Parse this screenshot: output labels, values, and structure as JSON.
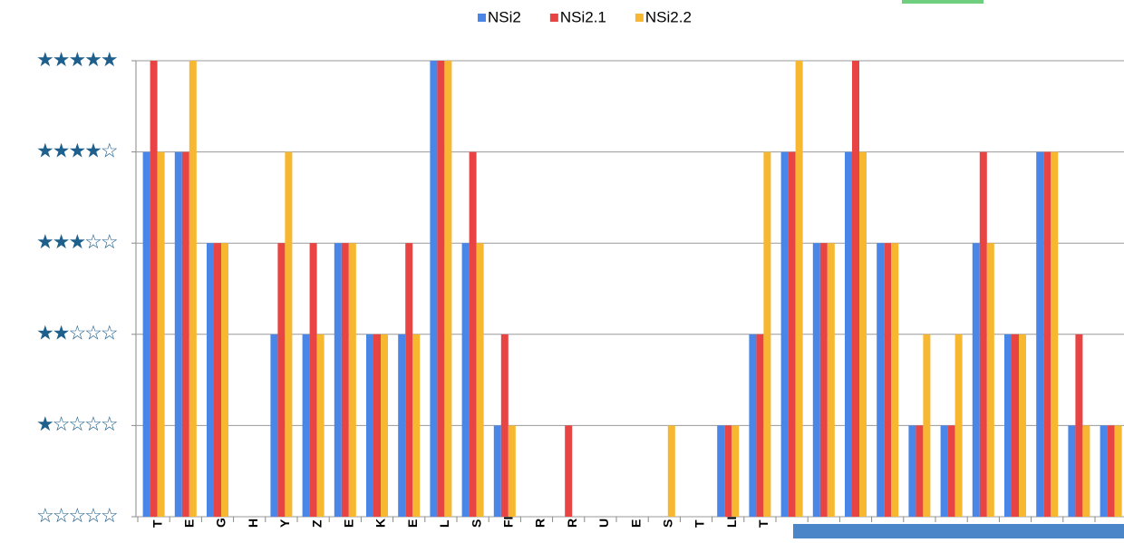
{
  "chart_data": {
    "type": "bar",
    "categories": [
      "T",
      "E",
      "G",
      "H",
      "Y",
      "Z",
      "E",
      "K",
      "E",
      "L",
      "S",
      "FI",
      "R",
      "R",
      "U",
      "E",
      "S",
      "T",
      "LI",
      "T",
      null,
      null,
      null,
      null,
      null,
      null,
      null,
      null,
      null,
      null,
      null
    ],
    "series": [
      {
        "name": "NSi2",
        "color": "#4a86e8",
        "values": [
          4,
          4,
          3,
          0,
          2,
          2,
          3,
          2,
          2,
          5,
          3,
          1,
          0,
          0,
          0,
          0,
          0,
          0,
          1,
          2,
          4,
          3,
          4,
          3,
          1,
          1,
          3,
          2,
          4,
          1,
          1
        ]
      },
      {
        "name": "NSi2.1",
        "color": "#e84444",
        "values": [
          5,
          4,
          3,
          0,
          3,
          3,
          3,
          2,
          3,
          5,
          4,
          2,
          0,
          1,
          0,
          0,
          0,
          0,
          1,
          2,
          4,
          3,
          5,
          3,
          1,
          1,
          4,
          2,
          4,
          2,
          1
        ]
      },
      {
        "name": "NSi2.2",
        "color": "#f7b731",
        "values": [
          4,
          5,
          3,
          0,
          4,
          2,
          3,
          2,
          2,
          5,
          3,
          1,
          0,
          0,
          0,
          0,
          1,
          0,
          1,
          4,
          5,
          3,
          4,
          3,
          2,
          2,
          3,
          2,
          4,
          1,
          1
        ]
      }
    ],
    "ylim": [
      0,
      5
    ],
    "yticks": [
      {
        "value": 0,
        "label": "☆☆☆☆☆"
      },
      {
        "value": 1,
        "label": "★☆☆☆☆"
      },
      {
        "value": 2,
        "label": "★★☆☆☆"
      },
      {
        "value": 3,
        "label": "★★★☆☆"
      },
      {
        "value": 4,
        "label": "★★★★☆"
      },
      {
        "value": 5,
        "label": "★★★★★"
      }
    ],
    "grid": true,
    "legend": "top"
  }
}
